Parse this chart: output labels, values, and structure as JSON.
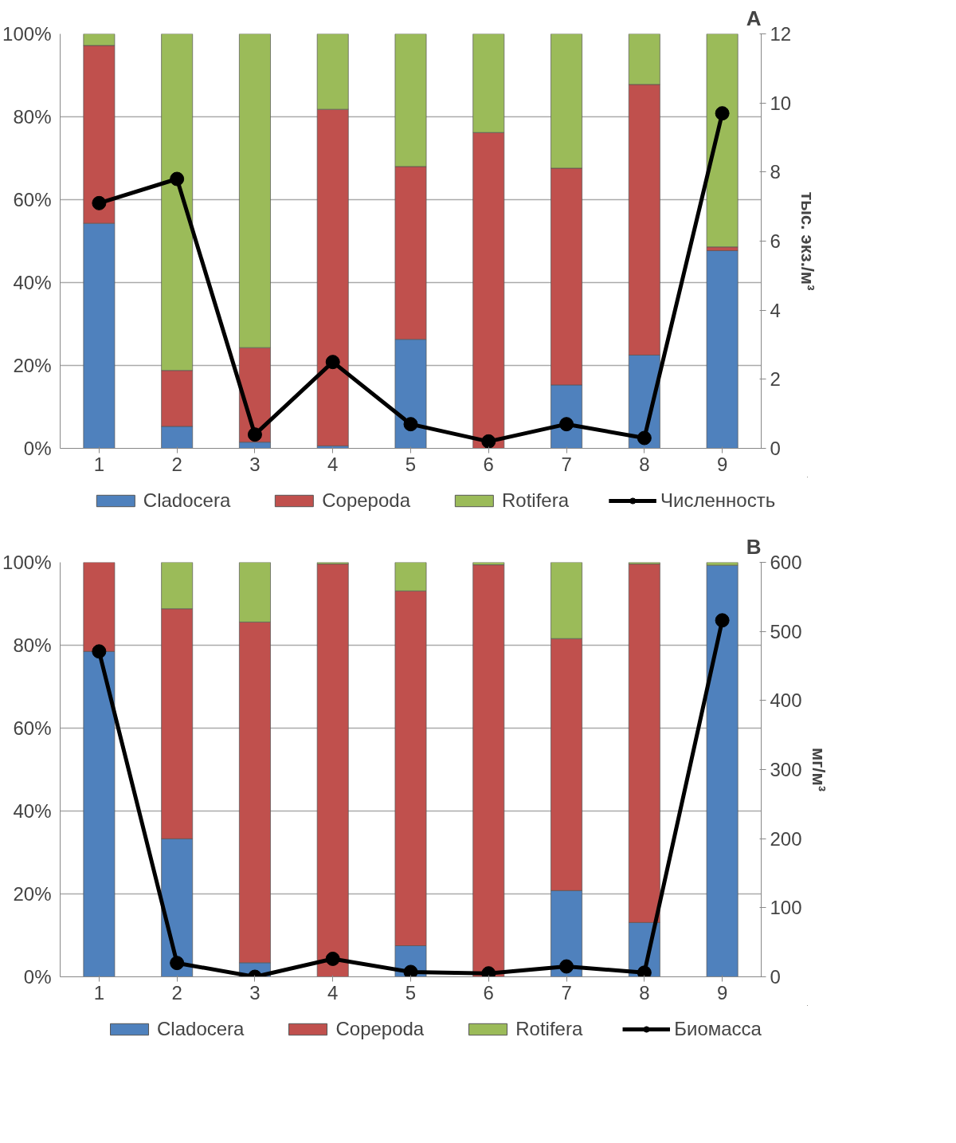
{
  "chart_data": [
    {
      "type": "bar",
      "stacked": true,
      "annotations": [
        "A"
      ],
      "categories": [
        "1",
        "2",
        "3",
        "4",
        "5",
        "6",
        "7",
        "8",
        "9"
      ],
      "ylim": [
        0,
        100
      ],
      "yticks": [
        {
          "value": 0,
          "label": "0%"
        },
        {
          "value": 20,
          "label": "20%"
        },
        {
          "value": 40,
          "label": "40%"
        },
        {
          "value": 60,
          "label": "60%"
        },
        {
          "value": 80,
          "label": "80%"
        },
        {
          "value": 100,
          "label": "100%"
        }
      ],
      "y2lim": [
        0,
        12
      ],
      "y2ticks": [
        0,
        2,
        4,
        6,
        8,
        10,
        12
      ],
      "y2label": "тыс. экз./м³",
      "grid": "y",
      "legend": "bottom",
      "series": [
        {
          "name": "Cladocera",
          "color": "#4f81bd",
          "values": [
            54.3,
            5.3,
            1.5,
            0.6,
            26.3,
            null,
            15.3,
            22.5,
            47.7
          ]
        },
        {
          "name": "Copepoda",
          "color": "#c0504d",
          "values": [
            42.9,
            13.5,
            22.8,
            81.2,
            41.7,
            76.2,
            52.3,
            65.3,
            0.9
          ]
        },
        {
          "name": "Rotifera",
          "color": "#9bbb59",
          "values": [
            2.8,
            81.2,
            75.7,
            18.2,
            32.0,
            23.8,
            32.4,
            12.2,
            51.4
          ]
        },
        {
          "name": "Численность",
          "type": "line",
          "axis": "y2",
          "color": "#000000",
          "marker": "circle",
          "values": [
            7.1,
            7.8,
            0.4,
            2.5,
            0.7,
            0.2,
            0.7,
            0.3,
            9.7
          ]
        }
      ]
    },
    {
      "type": "bar",
      "stacked": true,
      "annotations": [
        "B"
      ],
      "categories": [
        "1",
        "2",
        "3",
        "4",
        "5",
        "6",
        "7",
        "8",
        "9"
      ],
      "ylim": [
        0,
        100
      ],
      "yticks": [
        {
          "value": 0,
          "label": "0%"
        },
        {
          "value": 20,
          "label": "20%"
        },
        {
          "value": 40,
          "label": "40%"
        },
        {
          "value": 60,
          "label": "60%"
        },
        {
          "value": 80,
          "label": "80%"
        },
        {
          "value": 100,
          "label": "100%"
        }
      ],
      "y2lim": [
        0,
        600
      ],
      "y2ticks": [
        0,
        100,
        200,
        300,
        400,
        500,
        600
      ],
      "y2label": "мг/м³",
      "grid": "y",
      "legend": "bottom",
      "series": [
        {
          "name": "Cladocera",
          "color": "#4f81bd",
          "values": [
            78.5,
            33.3,
            3.4,
            null,
            7.5,
            null,
            20.8,
            13.1,
            99.3
          ]
        },
        {
          "name": "Copepoda",
          "color": "#c0504d",
          "values": [
            21.5,
            55.5,
            82.2,
            99.6,
            85.6,
            99.4,
            60.8,
            86.5,
            null
          ]
        },
        {
          "name": "Rotifera",
          "color": "#9bbb59",
          "values": [
            null,
            11.2,
            14.4,
            0.4,
            6.9,
            0.6,
            18.4,
            0.4,
            0.7
          ]
        },
        {
          "name": "Биомасса",
          "type": "line",
          "axis": "y2",
          "color": "#000000",
          "marker": "circle",
          "values": [
            471,
            20,
            0,
            26,
            7,
            5,
            15,
            6,
            516
          ]
        }
      ]
    }
  ]
}
